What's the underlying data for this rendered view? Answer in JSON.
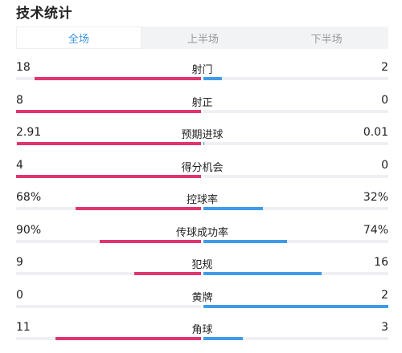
{
  "title": "技术统计",
  "tabs": [
    {
      "label": "全场",
      "active": true
    },
    {
      "label": "上半场",
      "active": false
    },
    {
      "label": "下半场",
      "active": false
    }
  ],
  "colors": {
    "home": "#e0356f",
    "away": "#3f9bea",
    "active_tab": "#3d95e4"
  },
  "stats": [
    {
      "label": "射门",
      "home": "18",
      "away": "2",
      "home_fraction": 0.9,
      "away_fraction": 0.1
    },
    {
      "label": "射正",
      "home": "8",
      "away": "0",
      "home_fraction": 1.0,
      "away_fraction": 0.0
    },
    {
      "label": "预期进球",
      "home": "2.91",
      "away": "0.01",
      "home_fraction": 0.997,
      "away_fraction": 0.003
    },
    {
      "label": "得分机会",
      "home": "4",
      "away": "0",
      "home_fraction": 1.0,
      "away_fraction": 0.0
    },
    {
      "label": "控球率",
      "home": "68%",
      "away": "32%",
      "home_fraction": 0.68,
      "away_fraction": 0.32
    },
    {
      "label": "传球成功率",
      "home": "90%",
      "away": "74%",
      "home_fraction": 0.55,
      "away_fraction": 0.45
    },
    {
      "label": "犯规",
      "home": "9",
      "away": "16",
      "home_fraction": 0.36,
      "away_fraction": 0.64
    },
    {
      "label": "黄牌",
      "home": "0",
      "away": "2",
      "home_fraction": 0.0,
      "away_fraction": 1.0
    },
    {
      "label": "角球",
      "home": "11",
      "away": "3",
      "home_fraction": 0.786,
      "away_fraction": 0.214
    }
  ]
}
